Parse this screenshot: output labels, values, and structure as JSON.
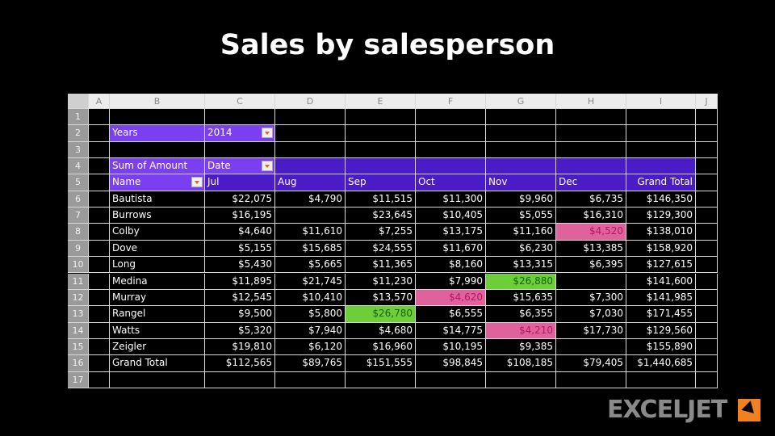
{
  "header": {
    "title": "Sales by salesperson"
  },
  "sheet": {
    "column_headers": [
      "A",
      "B",
      "C",
      "D",
      "E",
      "F",
      "G",
      "H",
      "I",
      "J"
    ],
    "row_numbers": [
      "1",
      "2",
      "3",
      "4",
      "5",
      "6",
      "7",
      "8",
      "9",
      "10",
      "11",
      "12",
      "13",
      "14",
      "15",
      "16",
      "17"
    ],
    "filter": {
      "label": "Years",
      "value": "2014"
    },
    "pivot": {
      "values_label": "Sum of Amount",
      "columns_label": "Date",
      "header": [
        "Name",
        "Jul",
        "Aug",
        "Sep",
        "Oct",
        "Nov",
        "Dec",
        "Grand Total"
      ],
      "rows": [
        [
          "Bautista",
          "$22,075",
          "$4,790",
          "$11,515",
          "$11,300",
          "$9,960",
          "$6,735",
          "$146,350"
        ],
        [
          "Burrows",
          "$16,195",
          null,
          "$23,645",
          "$10,405",
          "$5,055",
          "$16,310",
          "$129,300"
        ],
        [
          "Colby",
          "$4,640",
          "$11,610",
          "$7,255",
          "$13,175",
          "$11,160",
          "$4,520",
          "$138,010"
        ],
        [
          "Dove",
          "$5,155",
          "$15,685",
          "$24,555",
          "$11,670",
          "$6,230",
          "$13,385",
          "$158,920"
        ],
        [
          "Long",
          "$5,430",
          "$5,665",
          "$11,365",
          "$8,160",
          "$13,315",
          "$6,395",
          "$127,615"
        ],
        [
          "Medina",
          "$11,895",
          "$21,745",
          "$11,230",
          "$7,990",
          "$26,880",
          null,
          "$141,600"
        ],
        [
          "Murray",
          "$12,545",
          "$10,410",
          "$13,570",
          "$4,620",
          "$15,635",
          "$7,300",
          "$141,985"
        ],
        [
          "Rangel",
          "$9,500",
          "$5,800",
          "$26,780",
          "$6,555",
          "$6,355",
          "$7,030",
          "$171,455"
        ],
        [
          "Watts",
          "$5,320",
          "$7,940",
          "$4,680",
          "$14,775",
          "$4,210",
          "$17,730",
          "$129,560"
        ],
        [
          "Zeigler",
          "$19,810",
          "$6,120",
          "$16,960",
          "$10,195",
          "$9,385",
          null,
          "$155,890"
        ]
      ],
      "total": [
        "Grand Total",
        "$112,565",
        "$89,765",
        "$151,555",
        "$98,845",
        "$108,185",
        "$79,405",
        "$1,440,685"
      ],
      "highlights": [
        {
          "row": 2,
          "col": 6,
          "kind": "low"
        },
        {
          "row": 5,
          "col": 5,
          "kind": "high"
        },
        {
          "row": 6,
          "col": 4,
          "kind": "low"
        },
        {
          "row": 7,
          "col": 3,
          "kind": "high"
        },
        {
          "row": 8,
          "col": 5,
          "kind": "low"
        }
      ]
    }
  },
  "logo": "EXCELJET"
}
